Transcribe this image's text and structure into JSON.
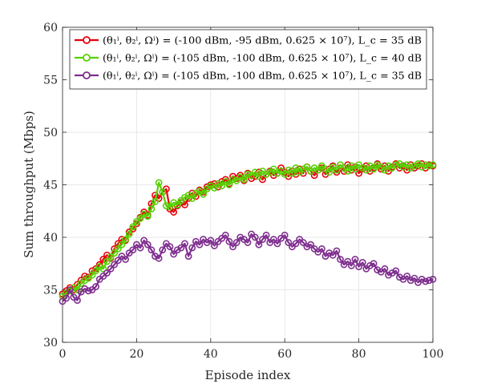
{
  "chart_data": {
    "type": "line",
    "xlabel": "Episode index",
    "ylabel": "Sum throughput (Mbps)",
    "xlim": [
      0,
      100
    ],
    "ylim": [
      30,
      60
    ],
    "xticks": [
      0,
      20,
      40,
      60,
      80,
      100
    ],
    "yticks": [
      30,
      35,
      40,
      45,
      50,
      55,
      60
    ],
    "grid": true,
    "legend_position": "top-right",
    "series": [
      {
        "name": "(θ₁ⁱ, θ₂ⁱ, Ωⁱ) = (-100 dBm, -95 dBm, 0.625 × 10⁷), L_c = 35 dB",
        "color": "#e8000b",
        "values": [
          34.6,
          34.9,
          35.2,
          35.0,
          35.5,
          35.9,
          36.3,
          36.2,
          36.8,
          37.0,
          37.4,
          37.9,
          38.3,
          38.0,
          38.9,
          39.4,
          39.8,
          39.7,
          40.5,
          40.8,
          41.3,
          41.9,
          42.4,
          42.1,
          43.2,
          44.0,
          43.7,
          44.3,
          44.6,
          42.7,
          42.4,
          43.0,
          43.3,
          43.1,
          43.7,
          44.2,
          43.9,
          44.5,
          44.3,
          44.8,
          45.0,
          45.1,
          44.8,
          45.3,
          45.5,
          45.1,
          45.8,
          45.6,
          45.9,
          45.4,
          46.1,
          45.6,
          45.8,
          46.2,
          45.5,
          46.0,
          46.3,
          45.9,
          46.1,
          46.6,
          46.2,
          45.8,
          46.3,
          46.0,
          46.5,
          46.1,
          46.7,
          46.3,
          45.9,
          46.4,
          46.6,
          46.0,
          46.5,
          46.8,
          46.2,
          46.6,
          46.3,
          46.9,
          46.4,
          46.7,
          46.1,
          46.5,
          46.8,
          46.3,
          46.6,
          47.0,
          46.5,
          46.8,
          46.3,
          46.7,
          47.0,
          46.6,
          46.8,
          46.4,
          46.9,
          46.6,
          46.8,
          47.0,
          46.6,
          46.9,
          46.8
        ]
      },
      {
        "name": "(θ₁ⁱ, θ₂ⁱ, Ωⁱ) = (-105 dBm, -100 dBm, 0.625 × 10⁷), L_c = 40 dB",
        "color": "#55d200",
        "values": [
          34.4,
          34.7,
          34.9,
          35.2,
          35.0,
          35.6,
          35.9,
          36.1,
          36.4,
          36.8,
          37.2,
          37.0,
          37.7,
          38.1,
          38.5,
          38.9,
          39.3,
          39.8,
          40.3,
          41.0,
          41.5,
          41.8,
          42.2,
          42.0,
          42.7,
          43.4,
          45.2,
          44.3,
          43.0,
          42.9,
          43.3,
          43.1,
          43.5,
          43.8,
          44.0,
          43.7,
          44.2,
          44.4,
          44.1,
          44.6,
          44.9,
          44.7,
          45.1,
          44.9,
          45.3,
          45.0,
          45.5,
          45.4,
          45.7,
          45.5,
          46.0,
          45.9,
          46.2,
          45.8,
          46.3,
          46.0,
          46.2,
          46.5,
          46.1,
          46.3,
          46.0,
          46.4,
          46.1,
          46.6,
          46.2,
          46.5,
          46.7,
          46.3,
          46.6,
          46.4,
          46.8,
          46.5,
          46.2,
          46.7,
          46.4,
          46.9,
          46.6,
          46.3,
          46.8,
          46.5,
          46.9,
          46.6,
          46.4,
          46.8,
          46.5,
          46.9,
          46.7,
          46.4,
          46.8,
          46.6,
          46.9,
          47.0,
          46.7,
          46.9,
          46.6,
          46.8,
          47.0,
          46.7,
          46.9,
          46.8,
          46.9
        ]
      },
      {
        "name": "(θ₁ⁱ, θ₂ⁱ, Ωⁱ) = (-105 dBm, -100 dBm, 0.625 × 10⁷), L_c = 35 dB",
        "color": "#7e2f8e",
        "values": [
          33.9,
          34.2,
          35.0,
          34.3,
          34.0,
          34.8,
          35.1,
          34.9,
          35.0,
          35.3,
          36.0,
          36.3,
          36.6,
          37.0,
          37.4,
          37.8,
          38.2,
          37.9,
          38.5,
          38.8,
          39.3,
          39.0,
          39.7,
          39.3,
          38.8,
          38.2,
          38.0,
          38.8,
          39.4,
          39.1,
          38.4,
          38.8,
          39.0,
          39.4,
          38.2,
          39.0,
          39.6,
          39.3,
          39.8,
          39.5,
          39.7,
          39.2,
          39.6,
          39.9,
          40.2,
          39.6,
          39.1,
          39.5,
          40.0,
          39.8,
          39.5,
          40.3,
          40.0,
          39.3,
          39.8,
          40.2,
          39.5,
          39.8,
          39.4,
          39.9,
          40.2,
          39.5,
          39.1,
          39.4,
          39.8,
          39.5,
          39.1,
          39.3,
          38.9,
          38.6,
          38.9,
          38.2,
          38.5,
          38.3,
          38.7,
          37.9,
          37.4,
          37.7,
          37.3,
          37.9,
          37.2,
          37.6,
          37.0,
          37.3,
          37.5,
          36.9,
          36.7,
          37.0,
          36.4,
          36.6,
          36.8,
          36.2,
          36.0,
          36.3,
          35.9,
          36.1,
          35.7,
          36.0,
          35.8,
          35.9,
          36.0
        ]
      }
    ]
  }
}
